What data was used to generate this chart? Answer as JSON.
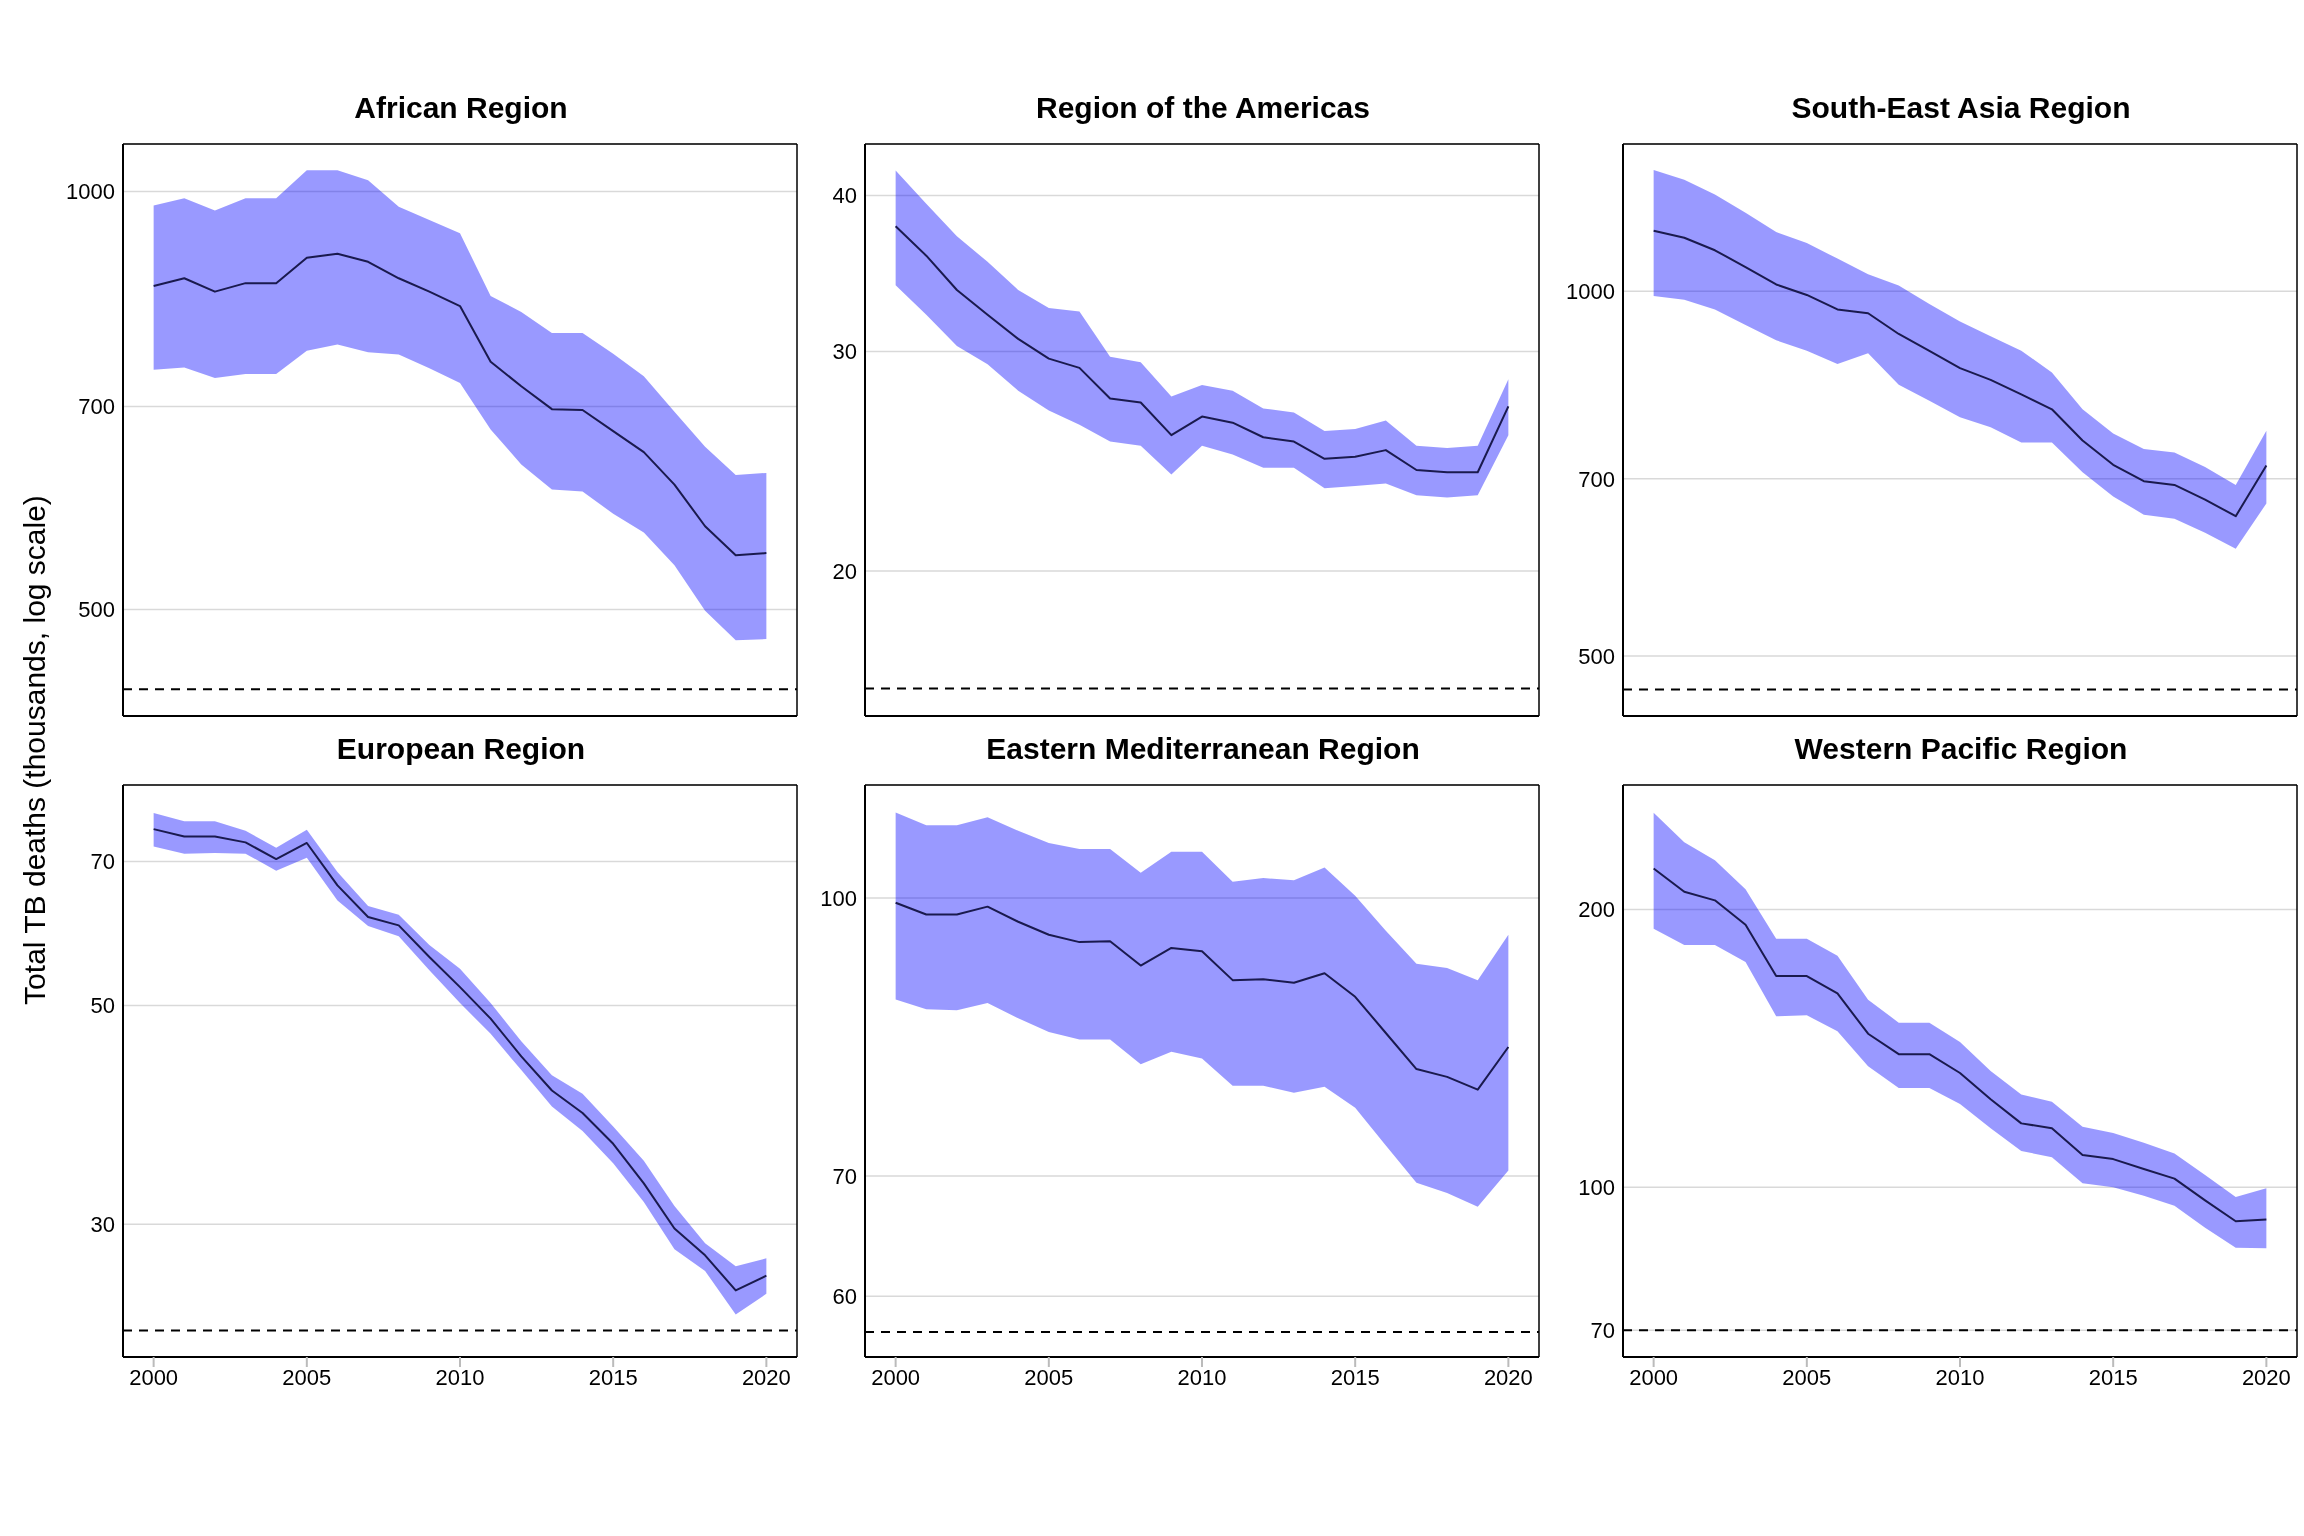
{
  "chart_data": [
    {
      "type": "line",
      "title": "African Region",
      "ylabel": "Total TB deaths (thousands, log scale)",
      "x": [
        2000,
        2001,
        2002,
        2003,
        2004,
        2005,
        2006,
        2007,
        2008,
        2009,
        2010,
        2011,
        2012,
        2013,
        2014,
        2015,
        2016,
        2017,
        2018,
        2019,
        2020
      ],
      "xlim": [
        1999,
        2021
      ],
      "xticks": [
        2000,
        2005,
        2010,
        2015,
        2020
      ],
      "ylim": [
        419,
        1082
      ],
      "yticks": [
        500,
        700,
        1000
      ],
      "log": "y",
      "grid": "y",
      "tick_labels": "y",
      "series": [
        {
          "color": "#1a1a4e",
          "values": [
            855,
            866,
            847,
            859,
            859,
            896,
            902,
            890,
            866,
            847,
            827,
            754,
            724,
            697,
            696,
            672,
            649,
            615,
            574,
            547,
            549
          ],
          "upper": [
            977,
            989,
            969,
            989,
            989,
            1036,
            1036,
            1019,
            975,
            954,
            933,
            841,
            819,
            791,
            791,
            764,
            736,
            694,
            655,
            625,
            627
          ],
          "lower": [
            744,
            747,
            734,
            739,
            739,
            768,
            776,
            766,
            763,
            746,
            728,
            674,
            636,
            610,
            608,
            586,
            568,
            538,
            499,
            475,
            476
          ]
        }
      ],
      "ref_lines": [
        {
          "axis": "y",
          "value": 438,
          "color": "#000000",
          "line_style": "dashed"
        }
      ]
    },
    {
      "type": "line",
      "title": "Region of the Americas",
      "x": [
        2000,
        2001,
        2002,
        2003,
        2004,
        2005,
        2006,
        2007,
        2008,
        2009,
        2010,
        2011,
        2012,
        2013,
        2014,
        2015,
        2016,
        2017,
        2018,
        2019,
        2020
      ],
      "xlim": [
        1999,
        2021
      ],
      "xticks": [
        2000,
        2005,
        2010,
        2015,
        2020
      ],
      "ylim": [
        15.3,
        44.0
      ],
      "yticks": [
        20,
        30,
        40
      ],
      "log": "y",
      "grid": "y",
      "tick_labels": "y",
      "series": [
        {
          "color": "#1a1a4e",
          "values": [
            37.8,
            35.8,
            33.6,
            32.1,
            30.7,
            29.6,
            29.1,
            27.5,
            27.3,
            25.7,
            26.6,
            26.3,
            25.6,
            25.4,
            24.6,
            24.7,
            25.0,
            24.1,
            24.0,
            24.0,
            27.1
          ],
          "upper": [
            41.9,
            39.4,
            37.1,
            35.4,
            33.6,
            32.5,
            32.3,
            29.7,
            29.4,
            27.6,
            28.2,
            27.9,
            27.0,
            26.8,
            25.9,
            26.0,
            26.4,
            25.2,
            25.1,
            25.2,
            28.5
          ],
          "lower": [
            33.9,
            32.1,
            30.3,
            29.3,
            27.9,
            26.9,
            26.2,
            25.4,
            25.2,
            23.9,
            25.2,
            24.8,
            24.2,
            24.2,
            23.3,
            23.4,
            23.5,
            23.0,
            22.9,
            23.0,
            25.7
          ]
        }
      ],
      "ref_lines": [
        {
          "axis": "y",
          "value": 16.1,
          "color": "#000000",
          "line_style": "dashed"
        }
      ]
    },
    {
      "type": "line",
      "title": "South-East Asia Region",
      "x": [
        2000,
        2001,
        2002,
        2003,
        2004,
        2005,
        2006,
        2007,
        2008,
        2009,
        2010,
        2011,
        2012,
        2013,
        2014,
        2015,
        2016,
        2017,
        2018,
        2019,
        2020
      ],
      "xlim": [
        1999,
        2021
      ],
      "xticks": [
        2000,
        2005,
        2010,
        2015,
        2020
      ],
      "ylim": [
        446,
        1323
      ],
      "yticks": [
        500,
        700,
        1000
      ],
      "log": "y",
      "grid": "y",
      "tick_labels": "y",
      "series": [
        {
          "color": "#1a1a4e",
          "values": [
            1122,
            1107,
            1081,
            1047,
            1013,
            993,
            966,
            959,
            922,
            893,
            864,
            845,
            822,
            799,
            753,
            719,
            697,
            692,
            673,
            652,
            718
          ],
          "upper": [
            1259,
            1236,
            1202,
            1161,
            1119,
            1096,
            1064,
            1033,
            1011,
            976,
            944,
            918,
            893,
            857,
            799,
            763,
            741,
            736,
            716,
            692,
            767
          ],
          "lower": [
            991,
            984,
            966,
            938,
            911,
            893,
            871,
            889,
            837,
            812,
            787,
            772,
            750,
            750,
            709,
            677,
            654,
            649,
            632,
            613,
            668
          ]
        }
      ],
      "ref_lines": [
        {
          "axis": "y",
          "value": 469,
          "color": "#000000",
          "line_style": "dashed"
        }
      ]
    },
    {
      "type": "line",
      "title": "European Region",
      "x": [
        2000,
        2001,
        2002,
        2003,
        2004,
        2005,
        2006,
        2007,
        2008,
        2009,
        2010,
        2011,
        2012,
        2013,
        2014,
        2015,
        2016,
        2017,
        2018,
        2019,
        2020
      ],
      "xlim": [
        1999,
        2021
      ],
      "xticks": [
        2000,
        2005,
        2010,
        2015,
        2020
      ],
      "ylim": [
        22.0,
        83.7
      ],
      "yticks": [
        30,
        50,
        70
      ],
      "log": "y",
      "grid": "y",
      "series": [
        {
          "color": "#1a1a4e",
          "values": [
            75.5,
            74.2,
            74.2,
            73.2,
            70.4,
            73.1,
            66.2,
            61.5,
            60.3,
            56.0,
            52.2,
            48.5,
            44.4,
            41.0,
            38.9,
            36.2,
            33.0,
            29.7,
            27.9,
            25.7,
            26.6
          ],
          "upper": [
            78.4,
            76.9,
            76.9,
            75.2,
            72.3,
            75.4,
            68.3,
            63.1,
            61.8,
            57.6,
            54.5,
            50.3,
            46.0,
            42.5,
            40.7,
            37.7,
            34.8,
            31.3,
            28.7,
            27.2,
            27.7
          ],
          "lower": [
            72.5,
            71.3,
            71.4,
            71.3,
            68.5,
            70.6,
            63.9,
            60.2,
            58.8,
            54.3,
            50.3,
            46.8,
            43.0,
            39.5,
            37.3,
            34.6,
            31.6,
            28.3,
            26.9,
            24.3,
            25.5
          ]
        }
      ],
      "ref_lines": [
        {
          "axis": "y",
          "value": 23.4,
          "color": "#000000",
          "line_style": "dashed"
        }
      ]
    },
    {
      "type": "line",
      "title": "Eastern Mediterranean Region",
      "x": [
        2000,
        2001,
        2002,
        2003,
        2004,
        2005,
        2006,
        2007,
        2008,
        2009,
        2010,
        2011,
        2012,
        2013,
        2014,
        2015,
        2016,
        2017,
        2018,
        2019,
        2020
      ],
      "xlim": [
        1999,
        2021
      ],
      "xticks": [
        2000,
        2005,
        2010,
        2015,
        2020
      ],
      "ylim": [
        55.5,
        115.6
      ],
      "yticks": [
        60,
        70,
        100
      ],
      "log": "y",
      "grid": "y",
      "series": [
        {
          "color": "#1a1a4e",
          "values": [
            99.4,
            97.9,
            97.9,
            98.9,
            97.0,
            95.4,
            94.5,
            94.6,
            91.7,
            93.8,
            93.4,
            90.0,
            90.1,
            89.7,
            90.8,
            88.1,
            84.1,
            80.3,
            79.5,
            78.2,
            82.6
          ],
          "upper": [
            111.6,
            109.8,
            109.8,
            110.9,
            109.0,
            107.3,
            106.5,
            106.5,
            103.3,
            106.1,
            106.1,
            102.1,
            102.6,
            102.3,
            104.0,
            100.3,
            95.9,
            91.9,
            91.4,
            90.0,
            95.4
          ],
          "lower": [
            87.8,
            86.7,
            86.6,
            87.4,
            85.7,
            84.2,
            83.4,
            83.4,
            80.8,
            82.1,
            81.4,
            78.6,
            78.6,
            77.9,
            78.5,
            76.4,
            72.8,
            69.4,
            68.5,
            67.3,
            70.5
          ]
        }
      ],
      "ref_lines": [
        {
          "axis": "y",
          "value": 57.3,
          "color": "#000000",
          "line_style": "dashed"
        }
      ]
    },
    {
      "type": "line",
      "title": "Western Pacific Region",
      "x": [
        2000,
        2001,
        2002,
        2003,
        2004,
        2005,
        2006,
        2007,
        2008,
        2009,
        2010,
        2011,
        2012,
        2013,
        2014,
        2015,
        2016,
        2017,
        2018,
        2019,
        2020
      ],
      "xlim": [
        1999,
        2021
      ],
      "xticks": [
        2000,
        2005,
        2010,
        2015,
        2020
      ],
      "ylim": [
        65.5,
        272.8
      ],
      "yticks": [
        70,
        100,
        200
      ],
      "log": "y",
      "grid": "y",
      "series": [
        {
          "color": "#1a1a4e",
          "values": [
            221.5,
            209.0,
            204.6,
            192.5,
            169.4,
            169.4,
            162.2,
            146.7,
            139.4,
            139.4,
            133.0,
            124.6,
            117.3,
            115.9,
            108.4,
            107.3,
            104.7,
            102.2,
            96.8,
            91.9,
            92.3
          ],
          "upper": [
            254.6,
            236.5,
            226.1,
            210.3,
            185.9,
            185.9,
            178.2,
            159.7,
            150.8,
            150.8,
            143.7,
            133.7,
            126.1,
            123.8,
            116.3,
            114.5,
            111.8,
            108.8,
            103.1,
            97.6,
            99.8
          ],
          "lower": [
            190.6,
            183.0,
            183.0,
            175.4,
            153.2,
            153.6,
            147.6,
            135.3,
            128.1,
            128.1,
            123.1,
            115.9,
            109.5,
            107.8,
            101.0,
            100.0,
            97.9,
            95.5,
            90.4,
            86.0,
            85.9
          ]
        }
      ],
      "ref_lines": [
        {
          "axis": "y",
          "value": 70,
          "color": "#000000",
          "line_style": "dashed"
        }
      ]
    }
  ]
}
